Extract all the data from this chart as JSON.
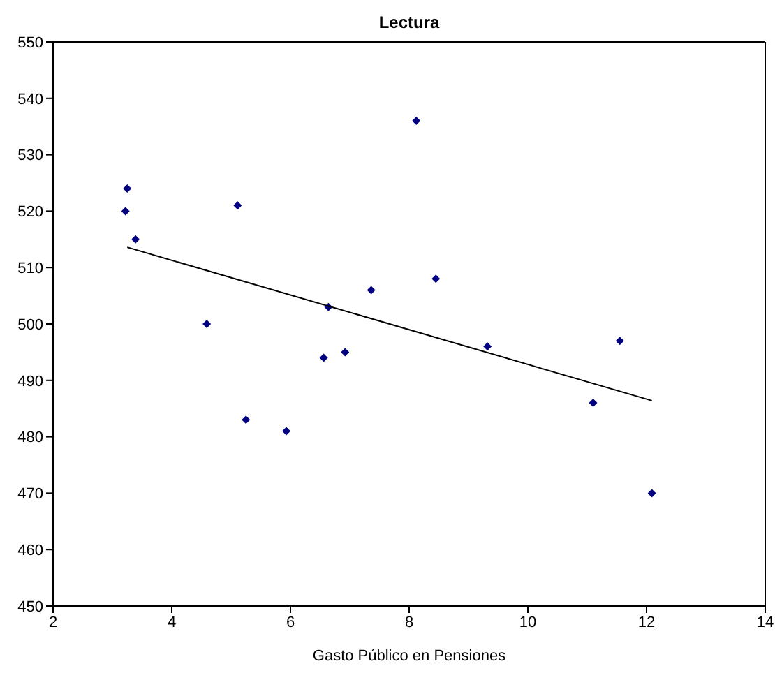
{
  "chart_data": {
    "type": "scatter",
    "title": "Lectura",
    "xlabel": "Gasto Público en Pensiones",
    "xlim": [
      2,
      14
    ],
    "xticks": [
      2,
      4,
      6,
      8,
      10,
      12,
      14
    ],
    "ylim": [
      450,
      550
    ],
    "yticks": [
      450,
      460,
      470,
      480,
      490,
      500,
      510,
      520,
      530,
      540,
      550
    ],
    "grid": false,
    "legend": false,
    "marker": "diamond",
    "series": [
      {
        "color": "#000080",
        "x": [
          3.25,
          3.22,
          3.39,
          4.59,
          5.11,
          5.25,
          5.93,
          6.56,
          6.64,
          6.92,
          7.36,
          8.12,
          8.45,
          9.32,
          11.1,
          11.55,
          12.09
        ],
        "values": [
          524,
          520,
          515,
          500,
          521,
          483,
          481,
          494,
          503,
          495,
          506,
          536,
          508,
          496,
          486,
          497,
          470
        ]
      },
      {
        "type": "line",
        "color": "#000000",
        "marker": "none",
        "x": [
          3.25,
          12.09
        ],
        "values": [
          513.6,
          486.4
        ]
      }
    ]
  }
}
